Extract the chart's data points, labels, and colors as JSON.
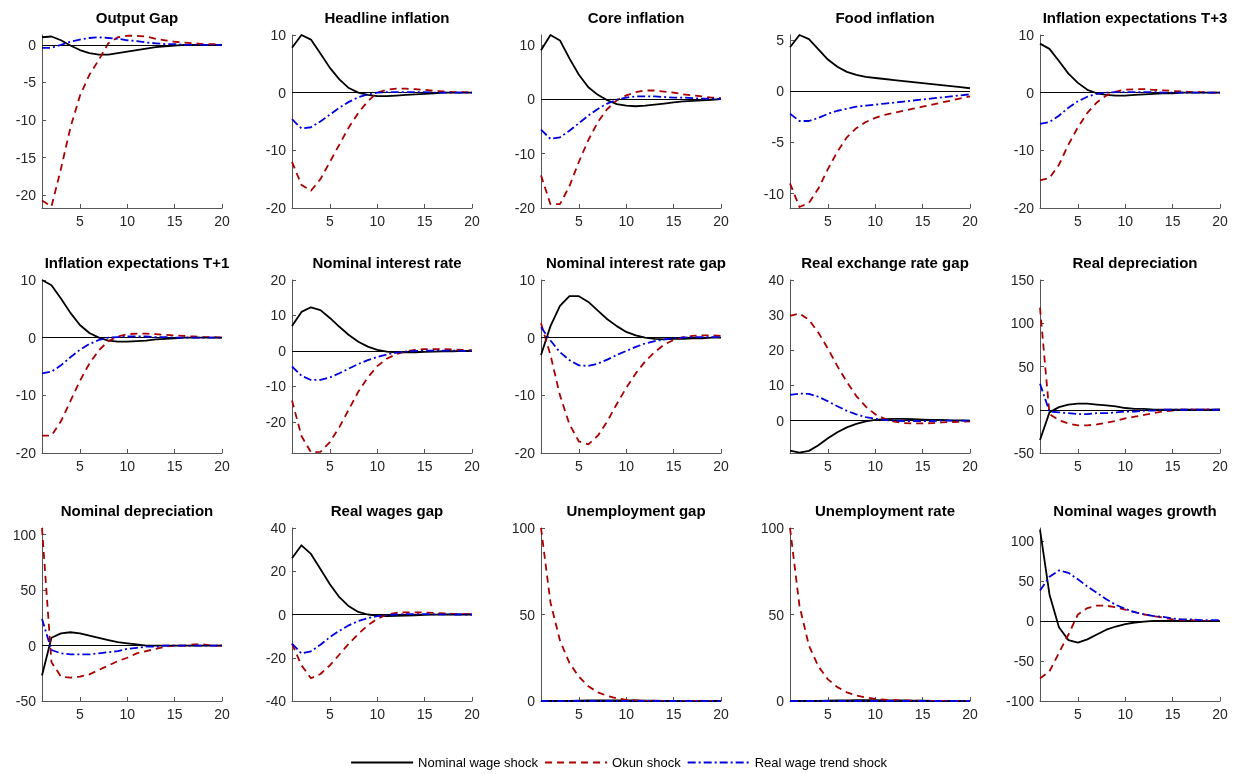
{
  "chart_data": [
    {
      "type": "line",
      "title": "Output Gap",
      "x": [
        1,
        2,
        3,
        4,
        5,
        6,
        7,
        8,
        9,
        10,
        11,
        12,
        13,
        14,
        15,
        16,
        17,
        18,
        19,
        20
      ],
      "xlim": [
        1,
        20
      ],
      "xticks": [
        5,
        10,
        15,
        20
      ],
      "ylim": [
        -21.7,
        1.3
      ],
      "yticks": [
        -20,
        -15,
        -10,
        -5,
        0
      ],
      "ref_lines": [
        {
          "axis": "y",
          "value": 0,
          "color": "#000000"
        }
      ],
      "series": [
        {
          "color": "#000000",
          "line_style": "solid",
          "values": [
            1.0,
            1.1,
            0.6,
            -0.1,
            -0.7,
            -1.1,
            -1.3,
            -1.3,
            -1.1,
            -0.9,
            -0.7,
            -0.5,
            -0.3,
            -0.2,
            -0.1,
            0,
            0,
            0,
            0,
            0
          ]
        },
        {
          "color": "#aa0000",
          "line_style": "dashed",
          "values": [
            -20.7,
            -21.5,
            -16.5,
            -11,
            -6.8,
            -4,
            -2,
            0.2,
            1.0,
            1.2,
            1.2,
            1.1,
            0.8,
            0.6,
            0.4,
            0.3,
            0.2,
            0.1,
            0.1,
            0
          ]
        },
        {
          "color": "#0000dd",
          "line_style": "dashdot",
          "values": [
            -0.4,
            -0.4,
            0,
            0.4,
            0.7,
            0.9,
            1.0,
            0.9,
            0.8,
            0.6,
            0.5,
            0.3,
            0.2,
            0.1,
            0.1,
            0,
            0,
            0,
            0,
            0
          ]
        }
      ]
    },
    {
      "type": "line",
      "title": "Headline inflation",
      "x": [
        1,
        2,
        3,
        4,
        5,
        6,
        7,
        8,
        9,
        10,
        11,
        12,
        13,
        14,
        15,
        16,
        17,
        18,
        19,
        20
      ],
      "xlim": [
        1,
        20
      ],
      "xticks": [
        5,
        10,
        15,
        20
      ],
      "ylim": [
        -20,
        10
      ],
      "yticks": [
        -20,
        -10,
        0,
        10
      ],
      "ref_lines": [
        {
          "axis": "y",
          "value": 0,
          "color": "#000000"
        }
      ],
      "series": [
        {
          "color": "#000000",
          "line_style": "solid",
          "values": [
            7.8,
            10,
            9.2,
            6.8,
            4.3,
            2.3,
            0.8,
            0,
            -0.4,
            -0.6,
            -0.6,
            -0.5,
            -0.4,
            -0.3,
            -0.2,
            -0.1,
            0,
            0,
            0,
            0
          ]
        },
        {
          "color": "#aa0000",
          "line_style": "dashed",
          "values": [
            -12,
            -16,
            -17,
            -15,
            -12,
            -9,
            -6,
            -3.5,
            -1.5,
            0,
            0.5,
            0.7,
            0.7,
            0.6,
            0.5,
            0.3,
            0.2,
            0.1,
            0.1,
            0
          ]
        },
        {
          "color": "#0000dd",
          "line_style": "dashdot",
          "values": [
            -4.6,
            -6.2,
            -6,
            -5,
            -3.8,
            -2.6,
            -1.6,
            -0.8,
            -0.3,
            0,
            0.1,
            0.1,
            0.1,
            0.1,
            0.1,
            0,
            0,
            0,
            0,
            0
          ]
        }
      ]
    },
    {
      "type": "line",
      "title": "Core inflation",
      "x": [
        1,
        2,
        3,
        4,
        5,
        6,
        7,
        8,
        9,
        10,
        11,
        12,
        13,
        14,
        15,
        16,
        17,
        18,
        19,
        20
      ],
      "xlim": [
        1,
        20
      ],
      "xticks": [
        5,
        10,
        15,
        20
      ],
      "ylim": [
        -20,
        11.8
      ],
      "yticks": [
        -20,
        -10,
        0,
        10
      ],
      "ref_lines": [
        {
          "axis": "y",
          "value": 0,
          "color": "#000000"
        }
      ],
      "series": [
        {
          "color": "#000000",
          "line_style": "solid",
          "values": [
            9,
            11.8,
            10.8,
            7.5,
            4.5,
            2.2,
            0.8,
            -0.2,
            -0.9,
            -1.2,
            -1.3,
            -1.2,
            -1.0,
            -0.8,
            -0.6,
            -0.4,
            -0.3,
            -0.2,
            -0.1,
            0
          ]
        },
        {
          "color": "#aa0000",
          "line_style": "dashed",
          "values": [
            -14,
            -19.3,
            -19.3,
            -16,
            -11.5,
            -7.5,
            -4.2,
            -1.8,
            -0.2,
            0.7,
            1.3,
            1.6,
            1.6,
            1.4,
            1.2,
            0.9,
            0.7,
            0.5,
            0.3,
            0.2
          ]
        },
        {
          "color": "#0000dd",
          "line_style": "dashdot",
          "values": [
            -5.6,
            -7.3,
            -7,
            -5.8,
            -4.4,
            -3,
            -1.8,
            -0.8,
            -0.1,
            0.3,
            0.5,
            0.5,
            0.5,
            0.4,
            0.3,
            0.3,
            0.2,
            0.1,
            0.1,
            0
          ]
        }
      ]
    },
    {
      "type": "line",
      "title": "Food inflation",
      "x": [
        1,
        2,
        3,
        4,
        5,
        6,
        7,
        8,
        9,
        10,
        11,
        12,
        13,
        14,
        15,
        16,
        17,
        18,
        19,
        20
      ],
      "xlim": [
        1,
        20
      ],
      "xticks": [
        5,
        10,
        15,
        20
      ],
      "ylim": [
        -11.4,
        5.5
      ],
      "yticks": [
        -10,
        -5,
        0,
        5
      ],
      "ref_lines": [
        {
          "axis": "y",
          "value": 0,
          "color": "#000000"
        }
      ],
      "series": [
        {
          "color": "#000000",
          "line_style": "solid",
          "values": [
            4.3,
            5.5,
            5.1,
            4.1,
            3.1,
            2.4,
            1.9,
            1.6,
            1.4,
            1.3,
            1.2,
            1.1,
            1.0,
            0.9,
            0.8,
            0.7,
            0.6,
            0.5,
            0.4,
            0.3
          ]
        },
        {
          "color": "#aa0000",
          "line_style": "dashed",
          "values": [
            -9,
            -11.3,
            -10.9,
            -9.5,
            -7.6,
            -5.9,
            -4.5,
            -3.6,
            -3.0,
            -2.6,
            -2.3,
            -2.1,
            -1.9,
            -1.7,
            -1.5,
            -1.3,
            -1.1,
            -0.9,
            -0.7,
            -0.5
          ]
        },
        {
          "color": "#0000dd",
          "line_style": "dashdot",
          "values": [
            -2.2,
            -2.9,
            -2.9,
            -2.6,
            -2.2,
            -1.9,
            -1.7,
            -1.5,
            -1.4,
            -1.3,
            -1.2,
            -1.1,
            -1.0,
            -0.9,
            -0.8,
            -0.7,
            -0.6,
            -0.5,
            -0.4,
            -0.3
          ]
        }
      ]
    },
    {
      "type": "line",
      "title": "Inflation expectations T+3",
      "x": [
        1,
        2,
        3,
        4,
        5,
        6,
        7,
        8,
        9,
        10,
        11,
        12,
        13,
        14,
        15,
        16,
        17,
        18,
        19,
        20
      ],
      "xlim": [
        1,
        20
      ],
      "xticks": [
        5,
        10,
        15,
        20
      ],
      "ylim": [
        -20,
        10
      ],
      "yticks": [
        -20,
        -10,
        0,
        10
      ],
      "ref_lines": [
        {
          "axis": "y",
          "value": 0,
          "color": "#000000"
        }
      ],
      "series": [
        {
          "color": "#000000",
          "line_style": "solid",
          "values": [
            8.5,
            7.6,
            5.5,
            3.3,
            1.7,
            0.5,
            -0.1,
            -0.4,
            -0.5,
            -0.5,
            -0.4,
            -0.3,
            -0.2,
            -0.1,
            -0.1,
            0,
            0,
            0,
            0,
            0
          ]
        },
        {
          "color": "#aa0000",
          "line_style": "dashed",
          "values": [
            -15.2,
            -14.8,
            -12.5,
            -9,
            -6,
            -3.5,
            -1.7,
            -0.5,
            0.2,
            0.5,
            0.6,
            0.6,
            0.5,
            0.4,
            0.3,
            0.2,
            0.1,
            0.1,
            0,
            0
          ]
        },
        {
          "color": "#0000dd",
          "line_style": "dashdot",
          "values": [
            -5.4,
            -5.1,
            -4,
            -2.6,
            -1.5,
            -0.7,
            -0.2,
            0,
            0.1,
            0.1,
            0.1,
            0.1,
            0.1,
            0,
            0,
            0,
            0,
            0,
            0,
            0
          ]
        }
      ]
    },
    {
      "type": "line",
      "title": "Inflation expectations T+1",
      "x": [
        1,
        2,
        3,
        4,
        5,
        6,
        7,
        8,
        9,
        10,
        11,
        12,
        13,
        14,
        15,
        16,
        17,
        18,
        19,
        20
      ],
      "xlim": [
        1,
        20
      ],
      "xticks": [
        5,
        10,
        15,
        20
      ],
      "ylim": [
        -20,
        10
      ],
      "yticks": [
        -20,
        -10,
        0,
        10
      ],
      "ref_lines": [
        {
          "axis": "y",
          "value": 0,
          "color": "#000000"
        }
      ],
      "series": [
        {
          "color": "#000000",
          "line_style": "solid",
          "values": [
            10,
            9.1,
            6.8,
            4.3,
            2.2,
            0.8,
            0,
            -0.5,
            -0.7,
            -0.7,
            -0.6,
            -0.5,
            -0.3,
            -0.2,
            -0.1,
            0,
            0,
            0,
            0,
            0
          ]
        },
        {
          "color": "#aa0000",
          "line_style": "dashed",
          "values": [
            -17,
            -17,
            -14.5,
            -11,
            -7.5,
            -4.5,
            -2.2,
            -0.6,
            0.2,
            0.6,
            0.7,
            0.7,
            0.6,
            0.5,
            0.4,
            0.3,
            0.2,
            0.1,
            0.1,
            0
          ]
        },
        {
          "color": "#0000dd",
          "line_style": "dashdot",
          "values": [
            -6.2,
            -5.9,
            -4.8,
            -3.4,
            -2.1,
            -1.1,
            -0.4,
            0,
            0.1,
            0.2,
            0.2,
            0.2,
            0.1,
            0.1,
            0,
            0,
            0,
            0,
            0,
            0
          ]
        }
      ]
    },
    {
      "type": "line",
      "title": "Nominal interest rate",
      "x": [
        1,
        2,
        3,
        4,
        5,
        6,
        7,
        8,
        9,
        10,
        11,
        12,
        13,
        14,
        15,
        16,
        17,
        18,
        19,
        20
      ],
      "xlim": [
        1,
        20
      ],
      "xticks": [
        5,
        10,
        15,
        20
      ],
      "ylim": [
        -28.8,
        20
      ],
      "yticks": [
        -20,
        -10,
        0,
        10,
        20
      ],
      "ref_lines": [
        {
          "axis": "y",
          "value": 0,
          "color": "#000000"
        }
      ],
      "series": [
        {
          "color": "#000000",
          "line_style": "solid",
          "values": [
            7,
            11,
            12.3,
            11.5,
            9.3,
            6.8,
            4.5,
            2.6,
            1.2,
            0.3,
            -0.2,
            -0.4,
            -0.4,
            -0.4,
            -0.3,
            -0.2,
            -0.1,
            -0.1,
            0,
            0
          ]
        },
        {
          "color": "#aa0000",
          "line_style": "dashed",
          "values": [
            -14,
            -24,
            -28.6,
            -28.5,
            -25.7,
            -21.5,
            -16.5,
            -11.5,
            -7.5,
            -4.3,
            -2.2,
            -0.9,
            -0.1,
            0.3,
            0.5,
            0.5,
            0.5,
            0.4,
            0.3,
            0.2
          ]
        },
        {
          "color": "#0000dd",
          "line_style": "dashdot",
          "values": [
            -4.4,
            -7,
            -8.2,
            -8.2,
            -7.5,
            -6.3,
            -5,
            -3.7,
            -2.6,
            -1.7,
            -1.0,
            -0.5,
            -0.2,
            0,
            0.1,
            0.1,
            0.1,
            0.1,
            0,
            0
          ]
        }
      ]
    },
    {
      "type": "line",
      "title": "Nominal interest rate gap",
      "x": [
        1,
        2,
        3,
        4,
        5,
        6,
        7,
        8,
        9,
        10,
        11,
        12,
        13,
        14,
        15,
        16,
        17,
        18,
        19,
        20
      ],
      "xlim": [
        1,
        20
      ],
      "xticks": [
        5,
        10,
        15,
        20
      ],
      "ylim": [
        -20,
        10
      ],
      "yticks": [
        -20,
        -10,
        0,
        10
      ],
      "ref_lines": [
        {
          "axis": "y",
          "value": 0,
          "color": "#000000"
        }
      ],
      "series": [
        {
          "color": "#000000",
          "line_style": "solid",
          "values": [
            -3,
            2,
            5.5,
            7.2,
            7.2,
            6.2,
            4.7,
            3.2,
            2,
            1,
            0.4,
            0,
            -0.2,
            -0.3,
            -0.2,
            -0.2,
            -0.1,
            -0.1,
            0,
            0
          ]
        },
        {
          "color": "#aa0000",
          "line_style": "dashed",
          "values": [
            2.5,
            -3,
            -10,
            -15,
            -18,
            -18.5,
            -17,
            -14.5,
            -11.5,
            -8.7,
            -6.2,
            -4.1,
            -2.5,
            -1.2,
            -0.4,
            0.1,
            0.3,
            0.4,
            0.4,
            0.3
          ]
        },
        {
          "color": "#0000dd",
          "line_style": "dashdot",
          "values": [
            1.8,
            -0.5,
            -2.5,
            -3.9,
            -4.8,
            -4.9,
            -4.5,
            -3.8,
            -3,
            -2.3,
            -1.6,
            -1,
            -0.6,
            -0.3,
            -0.1,
            0,
            0.1,
            0.1,
            0.1,
            0.1
          ]
        }
      ]
    },
    {
      "type": "line",
      "title": "Real exchange rate gap",
      "x": [
        1,
        2,
        3,
        4,
        5,
        6,
        7,
        8,
        9,
        10,
        11,
        12,
        13,
        14,
        15,
        16,
        17,
        18,
        19,
        20
      ],
      "xlim": [
        1,
        20
      ],
      "xticks": [
        5,
        10,
        15,
        20
      ],
      "ylim": [
        -9.2,
        40
      ],
      "yticks": [
        0,
        10,
        20,
        30,
        40
      ],
      "ref_lines": [
        {
          "axis": "y",
          "value": 0,
          "color": "#000000"
        }
      ],
      "series": [
        {
          "color": "#000000",
          "line_style": "solid",
          "values": [
            -8.5,
            -9.1,
            -8.6,
            -7,
            -5,
            -3.3,
            -1.9,
            -0.9,
            -0.2,
            0.2,
            0.4,
            0.5,
            0.5,
            0.4,
            0.3,
            0.2,
            0.2,
            0.1,
            0.1,
            0
          ]
        },
        {
          "color": "#aa0000",
          "line_style": "dashed",
          "values": [
            29.8,
            30.5,
            28.7,
            25,
            20.5,
            15.5,
            11,
            7,
            4,
            1.8,
            0.5,
            -0.3,
            -0.7,
            -0.8,
            -0.8,
            -0.7,
            -0.5,
            -0.4,
            -0.3,
            -0.2
          ]
        },
        {
          "color": "#0000dd",
          "line_style": "dashdot",
          "values": [
            7.3,
            7.7,
            7.6,
            6.8,
            5.5,
            4.1,
            2.8,
            1.8,
            1.0,
            0.5,
            0.2,
            0,
            -0.1,
            -0.1,
            -0.1,
            -0.1,
            0,
            0,
            0,
            0
          ]
        }
      ]
    },
    {
      "type": "line",
      "title": "Real depreciation",
      "x": [
        1,
        2,
        3,
        4,
        5,
        6,
        7,
        8,
        9,
        10,
        11,
        12,
        13,
        14,
        15,
        16,
        17,
        18,
        19,
        20
      ],
      "xlim": [
        1,
        20
      ],
      "xticks": [
        5,
        10,
        15,
        20
      ],
      "ylim": [
        -50,
        150
      ],
      "yticks": [
        -50,
        0,
        50,
        100,
        150
      ],
      "ref_lines": [
        {
          "axis": "y",
          "value": 0,
          "color": "#000000"
        }
      ],
      "series": [
        {
          "color": "#000000",
          "line_style": "solid",
          "values": [
            -35,
            -3,
            3,
            6,
            7,
            7,
            6,
            5,
            4,
            2,
            1,
            1,
            0,
            0,
            0,
            0,
            0,
            0,
            0,
            0
          ]
        },
        {
          "color": "#aa0000",
          "line_style": "dashed",
          "values": [
            118,
            -5,
            -12,
            -16,
            -18,
            -18,
            -17,
            -15,
            -13,
            -10,
            -8,
            -6,
            -4,
            -2,
            -1,
            0,
            0,
            0,
            0,
            0
          ]
        },
        {
          "color": "#0000dd",
          "line_style": "dashdot",
          "values": [
            30,
            -2,
            -3,
            -4,
            -5,
            -5,
            -4,
            -4,
            -3,
            -2,
            -2,
            -1,
            -1,
            0,
            0,
            0,
            0,
            0,
            0,
            0
          ]
        }
      ]
    },
    {
      "type": "line",
      "title": "Nominal depreciation",
      "x": [
        1,
        2,
        3,
        4,
        5,
        6,
        7,
        8,
        9,
        10,
        11,
        12,
        13,
        14,
        15,
        16,
        17,
        18,
        19,
        20
      ],
      "xlim": [
        1,
        20
      ],
      "xticks": [
        5,
        10,
        15,
        20
      ],
      "ylim": [
        -50,
        106
      ],
      "yticks": [
        -50,
        0,
        50,
        100
      ],
      "ref_lines": [
        {
          "axis": "y",
          "value": 0,
          "color": "#000000"
        }
      ],
      "series": [
        {
          "color": "#000000",
          "line_style": "solid",
          "values": [
            -27,
            7,
            11,
            12,
            11,
            9,
            7,
            5,
            3,
            2,
            1,
            0,
            0,
            0,
            0,
            0,
            0,
            0,
            0,
            0
          ]
        },
        {
          "color": "#aa0000",
          "line_style": "dashed",
          "values": [
            106,
            -15,
            -28,
            -29,
            -28,
            -26,
            -22,
            -18,
            -14,
            -11,
            -7,
            -5,
            -3,
            -1,
            0,
            0,
            1,
            1,
            0,
            0
          ]
        },
        {
          "color": "#0000dd",
          "line_style": "dashdot",
          "values": [
            24,
            -4,
            -7,
            -8,
            -8,
            -8,
            -7,
            -6,
            -5,
            -3,
            -2,
            -1,
            -1,
            0,
            0,
            0,
            0,
            0,
            0,
            0
          ]
        }
      ]
    },
    {
      "type": "line",
      "title": "Real wages gap",
      "x": [
        1,
        2,
        3,
        4,
        5,
        6,
        7,
        8,
        9,
        10,
        11,
        12,
        13,
        14,
        15,
        16,
        17,
        18,
        19,
        20
      ],
      "xlim": [
        1,
        20
      ],
      "xticks": [
        5,
        10,
        15,
        20
      ],
      "ylim": [
        -40,
        40
      ],
      "yticks": [
        -40,
        -20,
        0,
        20,
        40
      ],
      "ref_lines": [
        {
          "axis": "y",
          "value": 0,
          "color": "#000000"
        }
      ],
      "series": [
        {
          "color": "#000000",
          "line_style": "solid",
          "values": [
            26,
            32,
            28,
            21,
            14,
            8,
            3.8,
            1.2,
            0,
            -0.5,
            -0.7,
            -0.6,
            -0.5,
            -0.4,
            -0.2,
            -0.1,
            0,
            0,
            0,
            0
          ]
        },
        {
          "color": "#aa0000",
          "line_style": "dashed",
          "values": [
            -13.5,
            -23.5,
            -29.5,
            -27.5,
            -23.5,
            -18.5,
            -13.5,
            -9,
            -5,
            -2,
            0,
            0.8,
            1,
            1,
            0.9,
            0.7,
            0.5,
            0.3,
            0.2,
            0.1
          ]
        },
        {
          "color": "#0000dd",
          "line_style": "dashdot",
          "values": [
            -13.5,
            -18,
            -17,
            -14,
            -10.5,
            -7.5,
            -5,
            -3,
            -1.7,
            -0.8,
            -0.3,
            0,
            0.2,
            0.2,
            0.2,
            0.1,
            0.1,
            0,
            0,
            0
          ]
        }
      ]
    },
    {
      "type": "line",
      "title": "Unemployment gap",
      "legend": "bottom",
      "x": [
        1,
        2,
        3,
        4,
        5,
        6,
        7,
        8,
        9,
        10,
        11,
        12,
        13,
        14,
        15,
        16,
        17,
        18,
        19,
        20
      ],
      "xlim": [
        1,
        20
      ],
      "xticks": [
        5,
        10,
        15,
        20
      ],
      "ylim": [
        0,
        100
      ],
      "yticks": [
        0,
        50,
        100
      ],
      "ref_lines": [
        {
          "axis": "y",
          "value": 0,
          "color": "#000000"
        }
      ],
      "series": [
        {
          "name": "Nominal wage shock",
          "color": "#000000",
          "line_style": "solid",
          "values": [
            0,
            0,
            0,
            0.1,
            0.2,
            0.3,
            0.4,
            0.4,
            0.4,
            0.3,
            0.3,
            0.2,
            0.2,
            0.1,
            0.1,
            0,
            0,
            0,
            0,
            0
          ]
        },
        {
          "name": "Okun shock",
          "color": "#aa0000",
          "line_style": "dashed",
          "values": [
            100,
            57,
            35,
            22,
            14,
            8.5,
            5,
            3,
            1.5,
            0.7,
            0.3,
            0.1,
            0,
            0,
            0,
            0,
            0,
            0,
            0,
            0
          ]
        },
        {
          "name": "Real wage trend shock",
          "color": "#0000dd",
          "line_style": "dashdot",
          "values": [
            0,
            0,
            0,
            0,
            0,
            0,
            0,
            0,
            0,
            0,
            0,
            0,
            0,
            0,
            0,
            0,
            0,
            0,
            0,
            0
          ]
        }
      ]
    },
    {
      "type": "line",
      "title": "Unemployment rate",
      "x": [
        1,
        2,
        3,
        4,
        5,
        6,
        7,
        8,
        9,
        10,
        11,
        12,
        13,
        14,
        15,
        16,
        17,
        18,
        19,
        20
      ],
      "xlim": [
        1,
        20
      ],
      "xticks": [
        5,
        10,
        15,
        20
      ],
      "ylim": [
        0,
        100
      ],
      "yticks": [
        0,
        50,
        100
      ],
      "ref_lines": [
        {
          "axis": "y",
          "value": 0,
          "color": "#000000"
        }
      ],
      "series": [
        {
          "color": "#000000",
          "line_style": "solid",
          "values": [
            0,
            0,
            0,
            0.1,
            0.2,
            0.3,
            0.4,
            0.5,
            0.5,
            0.5,
            0.4,
            0.4,
            0.3,
            0.2,
            0.2,
            0.1,
            0.1,
            0,
            0,
            0
          ]
        },
        {
          "color": "#aa0000",
          "line_style": "dashed",
          "values": [
            100,
            55,
            32,
            20,
            12.5,
            8,
            5,
            3.2,
            2,
            1.2,
            0.8,
            0.5,
            0.3,
            0.2,
            0.1,
            0.1,
            0,
            0,
            0,
            0
          ]
        },
        {
          "color": "#0000dd",
          "line_style": "dashdot",
          "values": [
            0,
            0,
            0,
            0,
            0,
            0,
            0,
            0,
            0,
            0,
            0,
            0,
            0,
            0,
            0,
            0,
            0,
            0,
            0,
            0
          ]
        }
      ]
    },
    {
      "type": "line",
      "title": "Nominal wages growth",
      "x": [
        1,
        2,
        3,
        4,
        5,
        6,
        7,
        8,
        9,
        10,
        11,
        12,
        13,
        14,
        15,
        16,
        17,
        18,
        19,
        20
      ],
      "xlim": [
        1,
        20
      ],
      "xticks": [
        5,
        10,
        15,
        20
      ],
      "ylim": [
        -100,
        116
      ],
      "yticks": [
        -100,
        -50,
        0,
        50,
        100
      ],
      "ref_lines": [
        {
          "axis": "y",
          "value": 0,
          "color": "#000000"
        }
      ],
      "series": [
        {
          "color": "#000000",
          "line_style": "solid",
          "values": [
            114,
            33,
            -8,
            -24,
            -27,
            -23,
            -17,
            -11,
            -7,
            -4,
            -2,
            -1,
            0,
            0,
            0,
            0,
            0,
            0,
            0,
            0
          ]
        },
        {
          "color": "#aa0000",
          "line_style": "dashed",
          "values": [
            -72,
            -63,
            -40,
            -17,
            8,
            16,
            19,
            19,
            17,
            14,
            11,
            8,
            6,
            4,
            2,
            1,
            1,
            0,
            0,
            0
          ]
        },
        {
          "color": "#0000dd",
          "line_style": "dashdot",
          "values": [
            38,
            55,
            63,
            60,
            52,
            43,
            35,
            27,
            20,
            15,
            11,
            8,
            6,
            5,
            3,
            2,
            2,
            1,
            1,
            1
          ]
        }
      ]
    }
  ]
}
